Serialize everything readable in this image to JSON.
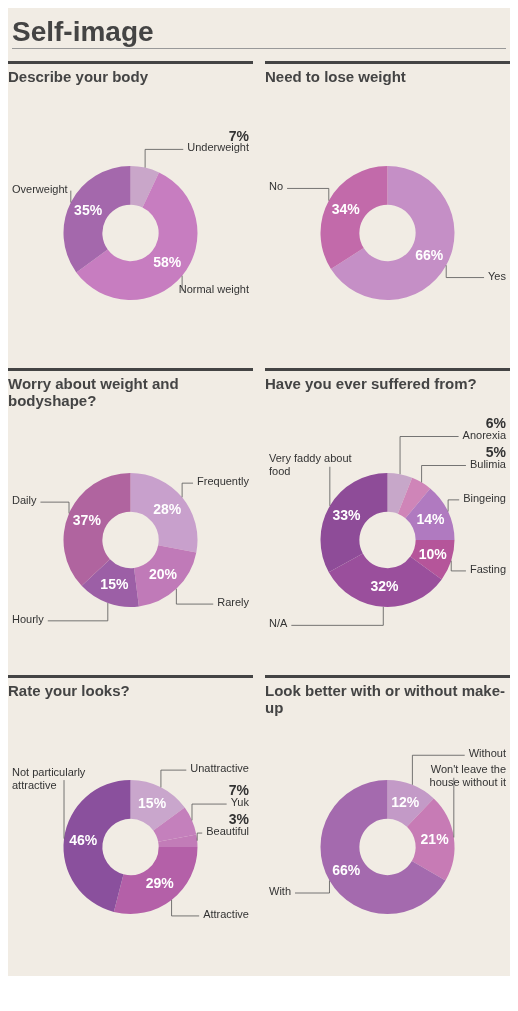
{
  "chart_data": [
    {
      "type": "donut",
      "title": "Describe your body",
      "annotations": [
        "Self-image"
      ],
      "legend": false,
      "categories": [
        "Underweight",
        "Normal weight",
        "Overweight"
      ],
      "values": [
        7,
        58,
        35
      ],
      "value_labels": [
        "7%",
        "58%",
        "35%"
      ],
      "colors": [
        "#c9a6c9",
        "#c77dc0",
        "#a468ac"
      ]
    },
    {
      "type": "donut",
      "title": "Need to lose weight",
      "legend": false,
      "categories": [
        "Yes",
        "No"
      ],
      "values": [
        66,
        34
      ],
      "value_labels": [
        "66%",
        "34%"
      ],
      "colors": [
        "#c58fc6",
        "#c26aaa"
      ]
    },
    {
      "type": "donut",
      "title": "Worry about weight and bodyshape?",
      "legend": false,
      "categories": [
        "Frequently",
        "Rarely",
        "Hourly",
        "Daily"
      ],
      "values": [
        28,
        20,
        15,
        37
      ],
      "value_labels": [
        "28%",
        "20%",
        "15%",
        "37%"
      ],
      "colors": [
        "#c8a0cc",
        "#c07ab8",
        "#9c5fa6",
        "#b0649f"
      ]
    },
    {
      "type": "donut",
      "title": "Have you ever suffered from?",
      "legend": false,
      "categories": [
        "Anorexia",
        "Bulimia",
        "Bingeing",
        "Fasting",
        "N/A",
        "Very faddy about food"
      ],
      "values": [
        6,
        5,
        14,
        10,
        32,
        33
      ],
      "value_labels": [
        "6%",
        "5%",
        "14%",
        "10%",
        "32%",
        "33%"
      ],
      "colors": [
        "#c7a7c9",
        "#cf85b8",
        "#b07ac0",
        "#b5559a",
        "#9a4f9c",
        "#8e4c98"
      ]
    },
    {
      "type": "donut",
      "title": "Rate your looks?",
      "legend": false,
      "categories": [
        "Unattractive",
        "Yuk",
        "Beautiful",
        "Attractive",
        "Not particularly attractive"
      ],
      "values": [
        15,
        7,
        3,
        29,
        46
      ],
      "value_labels": [
        "15%",
        "7%",
        "3%",
        "29%",
        "46%"
      ],
      "colors": [
        "#c9a6cc",
        "#c480bc",
        "#c27cb8",
        "#b460a8",
        "#8a509d"
      ]
    },
    {
      "type": "donut",
      "title": "Look better with or without make-up",
      "legend": false,
      "categories": [
        "Without",
        "Won't leave the house without it",
        "With"
      ],
      "values": [
        12,
        21,
        66
      ],
      "value_labels": [
        "12%",
        "21%",
        "66%"
      ],
      "colors": [
        "#c39ac7",
        "#c77bb5",
        "#a46aae"
      ]
    }
  ]
}
